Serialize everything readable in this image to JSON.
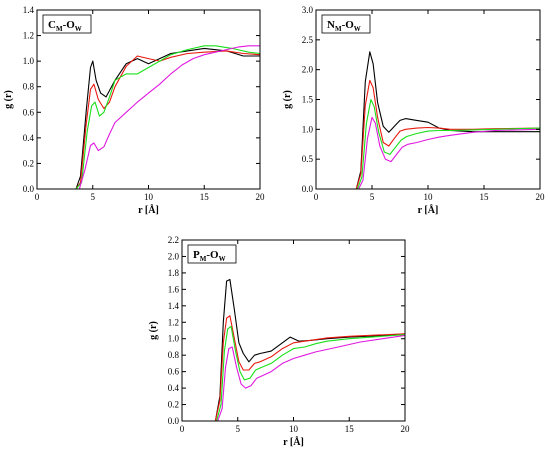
{
  "colors": {
    "black": "#000000",
    "red": "#e8190f",
    "green": "#19e019",
    "magenta": "#e019e0"
  },
  "chart_data": [
    {
      "type": "line",
      "panel_label": {
        "main": "C",
        "sub1": "M",
        "mid": "-O",
        "sub2": "W"
      },
      "xlabel": "r [Å]",
      "ylabel": "g (r)",
      "xlim": [
        0,
        20
      ],
      "ylim": [
        0,
        1.4
      ],
      "xticks": [
        0,
        5,
        10,
        15,
        20
      ],
      "yticks": [
        0.0,
        0.2,
        0.4,
        0.6,
        0.8,
        1.0,
        1.2,
        1.4
      ],
      "series": [
        {
          "color": "black",
          "x": [
            0,
            3.5,
            3.9,
            4.4,
            4.8,
            5.0,
            5.3,
            5.7,
            6.2,
            7.0,
            8.0,
            9.0,
            10.0,
            11.0,
            12.0,
            13.5,
            15.0,
            17.0,
            18.5,
            20.0
          ],
          "y": [
            0,
            0,
            0.1,
            0.6,
            0.95,
            1.0,
            0.85,
            0.75,
            0.72,
            0.85,
            0.98,
            1.02,
            0.98,
            1.02,
            1.06,
            1.08,
            1.1,
            1.08,
            1.04,
            1.04
          ]
        },
        {
          "color": "red",
          "x": [
            0,
            3.5,
            3.9,
            4.4,
            4.8,
            5.1,
            5.5,
            6.0,
            6.5,
            7.0,
            8.0,
            9.0,
            10.0,
            11.0,
            12.0,
            13.5,
            15.0,
            17.0,
            18.5,
            20.0
          ],
          "y": [
            0,
            0,
            0.05,
            0.5,
            0.78,
            0.82,
            0.7,
            0.63,
            0.68,
            0.8,
            0.96,
            1.04,
            1.02,
            1.0,
            1.03,
            1.06,
            1.07,
            1.08,
            1.06,
            1.05
          ]
        },
        {
          "color": "green",
          "x": [
            0,
            3.5,
            4.0,
            4.5,
            4.9,
            5.2,
            5.6,
            6.0,
            6.5,
            7.0,
            8.0,
            9.0,
            10.0,
            11.0,
            12.0,
            13.5,
            15.0,
            16.0,
            17.5,
            19.0,
            20.0
          ],
          "y": [
            0,
            0,
            0.05,
            0.45,
            0.65,
            0.68,
            0.57,
            0.6,
            0.72,
            0.85,
            0.9,
            0.9,
            0.95,
            1.0,
            1.05,
            1.09,
            1.12,
            1.12,
            1.1,
            1.07,
            1.06
          ]
        },
        {
          "color": "magenta",
          "x": [
            0,
            3.8,
            4.3,
            4.8,
            5.1,
            5.5,
            6.0,
            6.5,
            7.0,
            8.0,
            9.0,
            10.0,
            11.0,
            12.0,
            13.0,
            14.0,
            15.0,
            16.0,
            17.0,
            18.0,
            19.0,
            20.0
          ],
          "y": [
            0,
            0,
            0.15,
            0.34,
            0.36,
            0.3,
            0.33,
            0.43,
            0.52,
            0.6,
            0.68,
            0.75,
            0.82,
            0.9,
            0.97,
            1.02,
            1.05,
            1.07,
            1.09,
            1.11,
            1.12,
            1.12
          ]
        }
      ]
    },
    {
      "type": "line",
      "panel_label": {
        "main": "N",
        "sub1": "M",
        "mid": "-O",
        "sub2": "W"
      },
      "xlabel": "r [Å]",
      "ylabel": "g (r)",
      "xlim": [
        0,
        20
      ],
      "ylim": [
        0,
        3.0
      ],
      "xticks": [
        0,
        5,
        10,
        15,
        20
      ],
      "yticks": [
        0.0,
        0.5,
        1.0,
        1.5,
        2.0,
        2.5,
        3.0
      ],
      "series": [
        {
          "color": "black",
          "x": [
            0,
            3.6,
            4.0,
            4.4,
            4.8,
            5.1,
            5.5,
            6.0,
            6.5,
            7.0,
            7.5,
            8.0,
            9.0,
            10.0,
            11.0,
            12.0,
            14.0,
            16.0,
            20.0
          ],
          "y": [
            0,
            0,
            0.3,
            1.8,
            2.3,
            2.1,
            1.45,
            1.05,
            0.95,
            1.05,
            1.15,
            1.18,
            1.15,
            1.12,
            1.02,
            0.98,
            0.96,
            0.96,
            0.96
          ]
        },
        {
          "color": "red",
          "x": [
            0,
            3.6,
            4.0,
            4.4,
            4.8,
            5.1,
            5.5,
            6.0,
            6.5,
            7.0,
            7.5,
            8.0,
            9.0,
            10.0,
            11.0,
            12.0,
            14.0,
            16.0,
            20.0
          ],
          "y": [
            0,
            0,
            0.25,
            1.4,
            1.82,
            1.7,
            1.2,
            0.78,
            0.72,
            0.85,
            0.97,
            1.0,
            1.02,
            1.03,
            1.02,
            1.0,
            1.0,
            1.01,
            1.02
          ]
        },
        {
          "color": "green",
          "x": [
            0,
            3.7,
            4.1,
            4.5,
            4.9,
            5.2,
            5.6,
            6.1,
            6.6,
            7.1,
            7.6,
            8.1,
            9.0,
            10.0,
            11.0,
            12.0,
            14.0,
            16.0,
            20.0
          ],
          "y": [
            0,
            0,
            0.2,
            1.1,
            1.5,
            1.38,
            0.95,
            0.62,
            0.58,
            0.7,
            0.82,
            0.88,
            0.93,
            0.97,
            0.98,
            0.98,
            0.99,
            1.0,
            1.02
          ]
        },
        {
          "color": "magenta",
          "x": [
            0,
            3.8,
            4.2,
            4.6,
            5.0,
            5.3,
            5.7,
            6.2,
            6.7,
            7.2,
            7.7,
            8.2,
            9.0,
            10.0,
            11.0,
            12.0,
            14.0,
            16.0,
            20.0
          ],
          "y": [
            0,
            0,
            0.15,
            0.85,
            1.2,
            1.1,
            0.72,
            0.5,
            0.46,
            0.58,
            0.7,
            0.75,
            0.78,
            0.83,
            0.87,
            0.9,
            0.95,
            0.98,
            1.0
          ]
        }
      ]
    },
    {
      "type": "line",
      "panel_label": {
        "main": "P",
        "sub1": "M",
        "mid": "-O",
        "sub2": "W"
      },
      "xlabel": "r [Å]",
      "ylabel": "g (r)",
      "xlim": [
        0,
        20
      ],
      "ylim": [
        0,
        2.2
      ],
      "xticks": [
        0,
        5,
        10,
        15,
        20
      ],
      "yticks": [
        0.0,
        0.2,
        0.4,
        0.6,
        0.8,
        1.0,
        1.2,
        1.4,
        1.6,
        1.8,
        2.0,
        2.2
      ],
      "series": [
        {
          "color": "black",
          "x": [
            0,
            3.0,
            3.4,
            3.7,
            4.0,
            4.3,
            4.7,
            5.1,
            5.5,
            6.0,
            6.5,
            7.0,
            8.0,
            9.0,
            9.7,
            10.5,
            11.5,
            13.0,
            15.0,
            20.0
          ],
          "y": [
            0,
            0,
            0.3,
            1.2,
            1.7,
            1.72,
            1.35,
            0.95,
            0.82,
            0.72,
            0.8,
            0.82,
            0.85,
            0.95,
            1.02,
            0.97,
            0.98,
            1.0,
            1.02,
            1.05
          ]
        },
        {
          "color": "red",
          "x": [
            0,
            3.0,
            3.4,
            3.7,
            4.0,
            4.3,
            4.7,
            5.1,
            5.5,
            6.0,
            6.5,
            7.0,
            8.0,
            9.0,
            10.0,
            11.0,
            12.0,
            13.0,
            15.0,
            20.0
          ],
          "y": [
            0,
            0,
            0.25,
            0.95,
            1.25,
            1.28,
            1.0,
            0.72,
            0.62,
            0.62,
            0.7,
            0.72,
            0.78,
            0.88,
            0.95,
            0.97,
            0.99,
            1.01,
            1.03,
            1.06
          ]
        },
        {
          "color": "green",
          "x": [
            0,
            3.1,
            3.5,
            3.8,
            4.1,
            4.4,
            4.8,
            5.2,
            5.6,
            6.1,
            6.6,
            7.1,
            8.0,
            9.0,
            10.0,
            11.0,
            12.0,
            13.0,
            15.0,
            20.0
          ],
          "y": [
            0,
            0,
            0.2,
            0.85,
            1.12,
            1.15,
            0.85,
            0.6,
            0.5,
            0.52,
            0.62,
            0.65,
            0.7,
            0.8,
            0.88,
            0.9,
            0.94,
            0.97,
            1.0,
            1.05
          ]
        },
        {
          "color": "magenta",
          "x": [
            0,
            3.2,
            3.6,
            3.9,
            4.2,
            4.5,
            4.9,
            5.3,
            5.7,
            6.2,
            6.7,
            7.2,
            8.0,
            9.0,
            10.0,
            11.0,
            12.0,
            14.0,
            16.0,
            20.0
          ],
          "y": [
            0,
            0,
            0.15,
            0.65,
            0.88,
            0.9,
            0.65,
            0.45,
            0.4,
            0.43,
            0.52,
            0.55,
            0.6,
            0.7,
            0.76,
            0.8,
            0.84,
            0.9,
            0.96,
            1.04
          ]
        }
      ]
    }
  ]
}
